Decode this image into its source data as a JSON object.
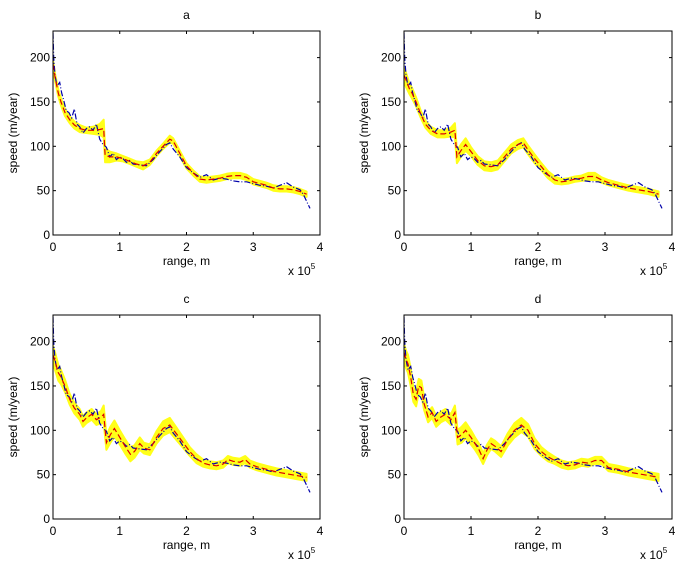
{
  "chart_data": [
    {
      "type": "line",
      "title": "a",
      "xlabel": "range, m",
      "ylabel": "speed (m/year)",
      "x_multiplier_label": "x 10",
      "x_multiplier_exponent": "5",
      "xlim": [
        0,
        4
      ],
      "ylim": [
        0,
        230
      ],
      "xticks": [
        0,
        1,
        2,
        3,
        4
      ],
      "yticks": [
        0,
        50,
        100,
        150,
        200
      ],
      "grid": false,
      "colors": {
        "observed": "#0000aa",
        "model": "#dd0000",
        "band": "#ffff00"
      },
      "observed": {
        "x": [
          0,
          0.01,
          0.03,
          0.06,
          0.1,
          0.13,
          0.16,
          0.2,
          0.24,
          0.28,
          0.32,
          0.36,
          0.4,
          0.45,
          0.5,
          0.55,
          0.6,
          0.65,
          0.7,
          0.75,
          0.8,
          0.85,
          0.9,
          0.95,
          1.0,
          1.05,
          1.1,
          1.15,
          1.2,
          1.3,
          1.4,
          1.5,
          1.6,
          1.7,
          1.75,
          1.8,
          1.9,
          2.0,
          2.1,
          2.2,
          2.3,
          2.4,
          2.5,
          2.6,
          2.7,
          2.8,
          2.9,
          3.0,
          3.1,
          3.2,
          3.3,
          3.4,
          3.5,
          3.6,
          3.7,
          3.75,
          3.8,
          3.85
        ],
        "values": [
          228,
          200,
          180,
          168,
          172,
          160,
          152,
          140,
          138,
          132,
          142,
          125,
          122,
          115,
          120,
          122,
          118,
          125,
          108,
          102,
          99,
          88,
          92,
          85,
          88,
          86,
          82,
          84,
          80,
          79,
          78,
          85,
          94,
          102,
          104,
          97,
          88,
          76,
          70,
          65,
          68,
          62,
          64,
          63,
          61,
          60,
          60,
          58,
          56,
          55,
          53,
          56,
          59,
          54,
          51,
          46,
          38,
          30
        ]
      },
      "model": {
        "x": [
          0,
          0.03,
          0.08,
          0.12,
          0.18,
          0.25,
          0.32,
          0.4,
          0.5,
          0.6,
          0.7,
          0.76,
          0.78,
          0.85,
          0.95,
          1.05,
          1.15,
          1.25,
          1.35,
          1.45,
          1.55,
          1.65,
          1.75,
          1.8,
          1.9,
          2.0,
          2.1,
          2.2,
          2.3,
          2.4,
          2.5,
          2.6,
          2.7,
          2.8,
          2.9,
          3.0,
          3.1,
          3.2,
          3.3,
          3.4,
          3.5,
          3.6,
          3.7,
          3.8
        ],
        "values": [
          193,
          178,
          160,
          150,
          138,
          130,
          124,
          120,
          118,
          118,
          119,
          120,
          90,
          88,
          88,
          86,
          83,
          80,
          78,
          82,
          92,
          100,
          108,
          106,
          92,
          78,
          70,
          63,
          62,
          63,
          64,
          66,
          67,
          67,
          65,
          60,
          58,
          56,
          53,
          52,
          52,
          51,
          49,
          46
        ]
      },
      "band_halfwidth": [
        4,
        4,
        4,
        4,
        4,
        4,
        4,
        4,
        3,
        4,
        6,
        10,
        8,
        6,
        4,
        3,
        3,
        3,
        4,
        3,
        3,
        3,
        4,
        3,
        3,
        3,
        3,
        3,
        3,
        3,
        3,
        3,
        3,
        3,
        3,
        3,
        3,
        3,
        3,
        3,
        3,
        3,
        3,
        3
      ]
    },
    {
      "type": "line",
      "title": "b",
      "xlabel": "range, m",
      "ylabel": "speed (m/year)",
      "x_multiplier_label": "x 10",
      "x_multiplier_exponent": "5",
      "xlim": [
        0,
        4
      ],
      "ylim": [
        0,
        230
      ],
      "xticks": [
        0,
        1,
        2,
        3,
        4
      ],
      "yticks": [
        0,
        50,
        100,
        150,
        200
      ],
      "grid": false,
      "colors": {
        "observed": "#0000aa",
        "model": "#dd0000",
        "band": "#ffff00"
      },
      "observed": {
        "x": [
          0,
          0.01,
          0.03,
          0.06,
          0.1,
          0.13,
          0.16,
          0.2,
          0.24,
          0.28,
          0.32,
          0.36,
          0.4,
          0.45,
          0.5,
          0.55,
          0.6,
          0.65,
          0.7,
          0.75,
          0.8,
          0.85,
          0.9,
          0.95,
          1.0,
          1.05,
          1.1,
          1.15,
          1.2,
          1.3,
          1.4,
          1.5,
          1.6,
          1.7,
          1.75,
          1.8,
          1.9,
          2.0,
          2.1,
          2.2,
          2.3,
          2.4,
          2.5,
          2.6,
          2.7,
          2.8,
          2.9,
          3.0,
          3.1,
          3.2,
          3.3,
          3.4,
          3.5,
          3.6,
          3.7,
          3.75,
          3.8,
          3.85
        ],
        "values": [
          228,
          200,
          180,
          168,
          172,
          160,
          152,
          140,
          138,
          132,
          142,
          125,
          122,
          115,
          120,
          122,
          118,
          125,
          108,
          102,
          99,
          88,
          92,
          85,
          88,
          86,
          82,
          84,
          80,
          79,
          78,
          85,
          94,
          102,
          104,
          97,
          88,
          76,
          70,
          65,
          68,
          62,
          64,
          63,
          61,
          60,
          60,
          58,
          56,
          55,
          53,
          56,
          59,
          54,
          51,
          46,
          38,
          30
        ]
      },
      "model": {
        "x": [
          0,
          0.03,
          0.08,
          0.12,
          0.18,
          0.25,
          0.32,
          0.4,
          0.5,
          0.6,
          0.7,
          0.76,
          0.79,
          0.85,
          0.92,
          1.0,
          1.1,
          1.2,
          1.3,
          1.4,
          1.5,
          1.6,
          1.7,
          1.78,
          1.85,
          1.95,
          2.05,
          2.15,
          2.25,
          2.35,
          2.45,
          2.55,
          2.65,
          2.75,
          2.85,
          2.95,
          3.05,
          3.2,
          3.35,
          3.5,
          3.65,
          3.8
        ],
        "values": [
          180,
          175,
          165,
          160,
          150,
          136,
          125,
          118,
          114,
          114,
          116,
          118,
          88,
          95,
          102,
          94,
          84,
          78,
          77,
          79,
          88,
          97,
          102,
          104,
          96,
          86,
          77,
          68,
          62,
          60,
          61,
          63,
          64,
          66,
          66,
          62,
          59,
          56,
          53,
          51,
          49,
          46
        ]
      },
      "band_halfwidth": [
        8,
        8,
        6,
        6,
        5,
        4,
        4,
        4,
        4,
        4,
        5,
        8,
        7,
        7,
        7,
        5,
        5,
        5,
        5,
        5,
        5,
        5,
        5,
        5,
        5,
        5,
        4,
        4,
        4,
        3,
        3,
        3,
        3,
        4,
        4,
        3,
        3,
        3,
        3,
        3,
        3,
        3
      ]
    },
    {
      "type": "line",
      "title": "c",
      "xlabel": "range, m",
      "ylabel": "speed (m/year)",
      "x_multiplier_label": "x 10",
      "x_multiplier_exponent": "5",
      "xlim": [
        0,
        4
      ],
      "ylim": [
        0,
        230
      ],
      "xticks": [
        0,
        1,
        2,
        3,
        4
      ],
      "yticks": [
        0,
        50,
        100,
        150,
        200
      ],
      "grid": false,
      "colors": {
        "observed": "#0000aa",
        "model": "#dd0000",
        "band": "#ffff00"
      },
      "observed": {
        "x": [
          0,
          0.01,
          0.03,
          0.06,
          0.1,
          0.13,
          0.16,
          0.2,
          0.24,
          0.28,
          0.32,
          0.36,
          0.4,
          0.45,
          0.5,
          0.55,
          0.6,
          0.65,
          0.7,
          0.75,
          0.8,
          0.85,
          0.9,
          0.95,
          1.0,
          1.05,
          1.1,
          1.15,
          1.2,
          1.3,
          1.4,
          1.5,
          1.6,
          1.7,
          1.75,
          1.8,
          1.9,
          2.0,
          2.1,
          2.2,
          2.3,
          2.4,
          2.5,
          2.6,
          2.7,
          2.8,
          2.9,
          3.0,
          3.1,
          3.2,
          3.3,
          3.4,
          3.5,
          3.6,
          3.7,
          3.75,
          3.8,
          3.85
        ],
        "values": [
          228,
          200,
          180,
          168,
          172,
          160,
          152,
          140,
          138,
          132,
          142,
          125,
          122,
          115,
          120,
          122,
          118,
          125,
          108,
          102,
          99,
          88,
          92,
          85,
          88,
          86,
          82,
          84,
          80,
          79,
          78,
          85,
          94,
          102,
          104,
          97,
          88,
          76,
          70,
          65,
          68,
          62,
          64,
          63,
          61,
          60,
          60,
          58,
          56,
          55,
          53,
          56,
          59,
          54,
          51,
          46,
          38,
          30
        ]
      },
      "model": {
        "x": [
          0,
          0.03,
          0.08,
          0.12,
          0.18,
          0.25,
          0.32,
          0.4,
          0.45,
          0.5,
          0.58,
          0.65,
          0.72,
          0.76,
          0.8,
          0.86,
          0.92,
          1.0,
          1.08,
          1.16,
          1.22,
          1.3,
          1.36,
          1.45,
          1.55,
          1.65,
          1.75,
          1.85,
          1.95,
          2.05,
          2.15,
          2.25,
          2.35,
          2.45,
          2.55,
          2.62,
          2.7,
          2.8,
          2.88,
          2.95,
          3.05,
          3.2,
          3.35,
          3.5,
          3.65,
          3.8
        ],
        "values": [
          185,
          178,
          165,
          160,
          150,
          135,
          125,
          118,
          110,
          114,
          118,
          112,
          115,
          118,
          86,
          95,
          102,
          92,
          82,
          73,
          76,
          85,
          80,
          78,
          92,
          102,
          106,
          96,
          86,
          76,
          68,
          63,
          61,
          60,
          62,
          67,
          65,
          64,
          67,
          62,
          59,
          56,
          53,
          51,
          49,
          47
        ]
      },
      "band_halfwidth": [
        10,
        10,
        9,
        8,
        7,
        6,
        6,
        6,
        6,
        6,
        6,
        6,
        7,
        10,
        8,
        9,
        9,
        8,
        8,
        8,
        7,
        7,
        6,
        6,
        7,
        8,
        8,
        7,
        6,
        5,
        5,
        4,
        4,
        4,
        4,
        4,
        4,
        4,
        4,
        4,
        4,
        4,
        4,
        4,
        4,
        4
      ]
    },
    {
      "type": "line",
      "title": "d",
      "xlabel": "range, m",
      "ylabel": "speed (m/year)",
      "x_multiplier_label": "x 10",
      "x_multiplier_exponent": "5",
      "xlim": [
        0,
        4
      ],
      "ylim": [
        0,
        230
      ],
      "xticks": [
        0,
        1,
        2,
        3,
        4
      ],
      "yticks": [
        0,
        50,
        100,
        150,
        200
      ],
      "grid": false,
      "colors": {
        "observed": "#0000aa",
        "model": "#dd0000",
        "band": "#ffff00"
      },
      "observed": {
        "x": [
          0,
          0.01,
          0.03,
          0.06,
          0.1,
          0.13,
          0.16,
          0.2,
          0.24,
          0.28,
          0.32,
          0.36,
          0.4,
          0.45,
          0.5,
          0.55,
          0.6,
          0.65,
          0.7,
          0.75,
          0.8,
          0.85,
          0.9,
          0.95,
          1.0,
          1.05,
          1.1,
          1.15,
          1.2,
          1.3,
          1.4,
          1.5,
          1.6,
          1.7,
          1.75,
          1.8,
          1.9,
          2.0,
          2.1,
          2.2,
          2.3,
          2.4,
          2.5,
          2.6,
          2.7,
          2.8,
          2.9,
          3.0,
          3.1,
          3.2,
          3.3,
          3.4,
          3.5,
          3.6,
          3.7,
          3.75,
          3.8,
          3.85
        ],
        "values": [
          228,
          200,
          180,
          168,
          172,
          160,
          152,
          140,
          138,
          132,
          142,
          125,
          122,
          115,
          120,
          122,
          118,
          125,
          108,
          102,
          99,
          88,
          92,
          85,
          88,
          86,
          82,
          84,
          80,
          79,
          78,
          85,
          94,
          102,
          104,
          97,
          88,
          76,
          70,
          65,
          68,
          62,
          64,
          63,
          61,
          60,
          60,
          58,
          56,
          55,
          53,
          56,
          59,
          54,
          51,
          46,
          38,
          30
        ]
      },
      "model": {
        "x": [
          0,
          0.03,
          0.06,
          0.1,
          0.14,
          0.18,
          0.22,
          0.26,
          0.3,
          0.36,
          0.42,
          0.48,
          0.55,
          0.62,
          0.7,
          0.76,
          0.8,
          0.86,
          0.92,
          1.0,
          1.06,
          1.12,
          1.18,
          1.24,
          1.3,
          1.36,
          1.45,
          1.55,
          1.65,
          1.75,
          1.85,
          1.95,
          2.05,
          2.15,
          2.25,
          2.35,
          2.45,
          2.55,
          2.65,
          2.75,
          2.85,
          2.95,
          3.05,
          3.2,
          3.35,
          3.5,
          3.65,
          3.8
        ],
        "values": [
          188,
          180,
          175,
          160,
          140,
          135,
          150,
          148,
          130,
          115,
          120,
          110,
          115,
          118,
          112,
          120,
          92,
          95,
          100,
          92,
          85,
          78,
          68,
          78,
          85,
          82,
          76,
          90,
          100,
          106,
          100,
          85,
          76,
          70,
          66,
          62,
          60,
          61,
          64,
          63,
          66,
          66,
          58,
          56,
          53,
          51,
          49,
          47
        ]
      },
      "band_halfwidth": [
        10,
        10,
        10,
        10,
        8,
        8,
        8,
        8,
        7,
        6,
        6,
        6,
        6,
        6,
        6,
        8,
        8,
        9,
        9,
        8,
        7,
        7,
        6,
        6,
        6,
        6,
        6,
        7,
        8,
        8,
        7,
        6,
        5,
        5,
        4,
        4,
        4,
        4,
        4,
        4,
        4,
        4,
        4,
        4,
        4,
        4,
        4,
        4
      ]
    }
  ]
}
